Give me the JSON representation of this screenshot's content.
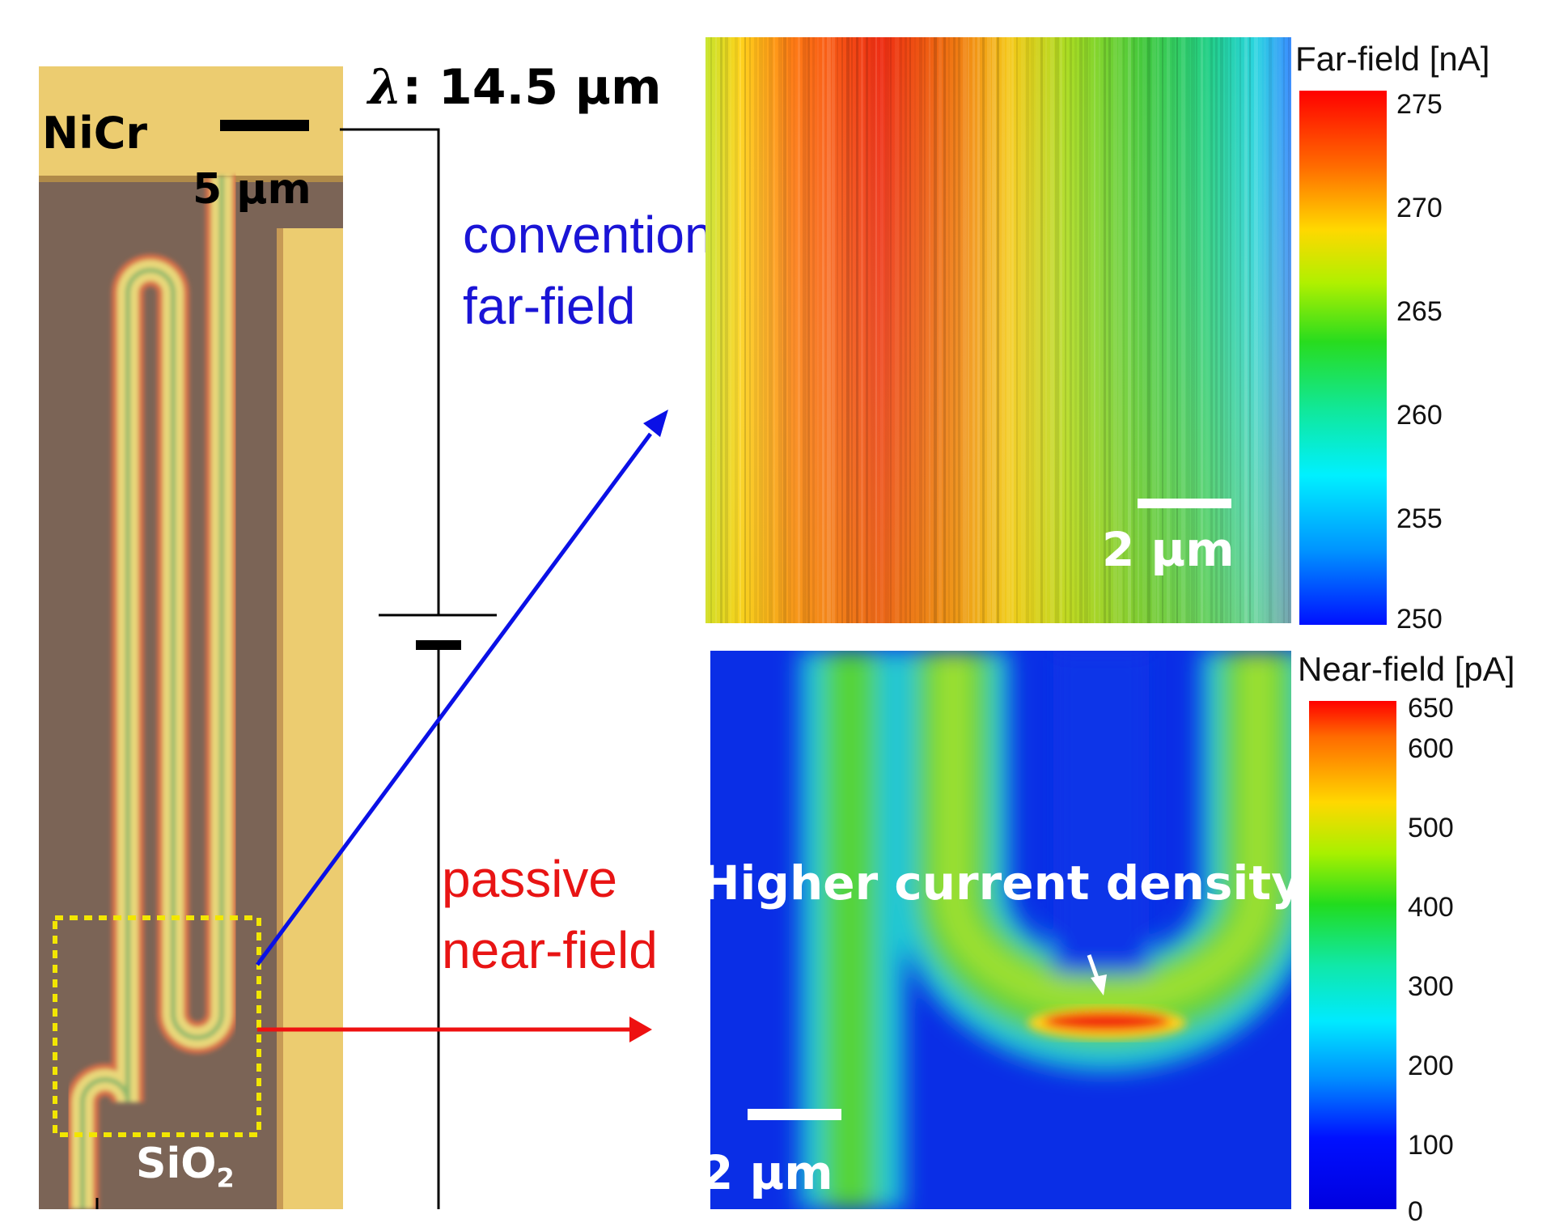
{
  "micrograph": {
    "nicr_label": "NiCr",
    "scale_bar_label": "5 µm",
    "sio2_label": "SiO",
    "sio2_subscript": "2"
  },
  "wavelength": {
    "symbol": "λ",
    "text": ": 14.5 µm"
  },
  "labels": {
    "conventional_line1": "conventional",
    "conventional_line2": "far-field",
    "passive_line1": "passive",
    "passive_line2": "near-field"
  },
  "far_field_map": {
    "scale_bar_label": "2 µm",
    "colorbar_title": "Far-field [nA]",
    "colorbar_ticks": [
      "275",
      "270",
      "265",
      "260",
      "255",
      "250"
    ]
  },
  "near_field_map": {
    "annotation": "Higher current density",
    "scale_bar_label": "2 µm",
    "colorbar_title": "Near-field [pA]",
    "colorbar_ticks": [
      "650",
      "600",
      "500",
      "400",
      "300",
      "200",
      "100",
      "0"
    ]
  },
  "colors": {
    "far_field_arrow": "#0a10e6",
    "near_field_arrow": "#ee1111",
    "conventional_text": "#1a14d6",
    "passive_text": "#e81414",
    "inspection_box": "#f2e600"
  },
  "icons": {
    "battery": "battery-icon"
  }
}
